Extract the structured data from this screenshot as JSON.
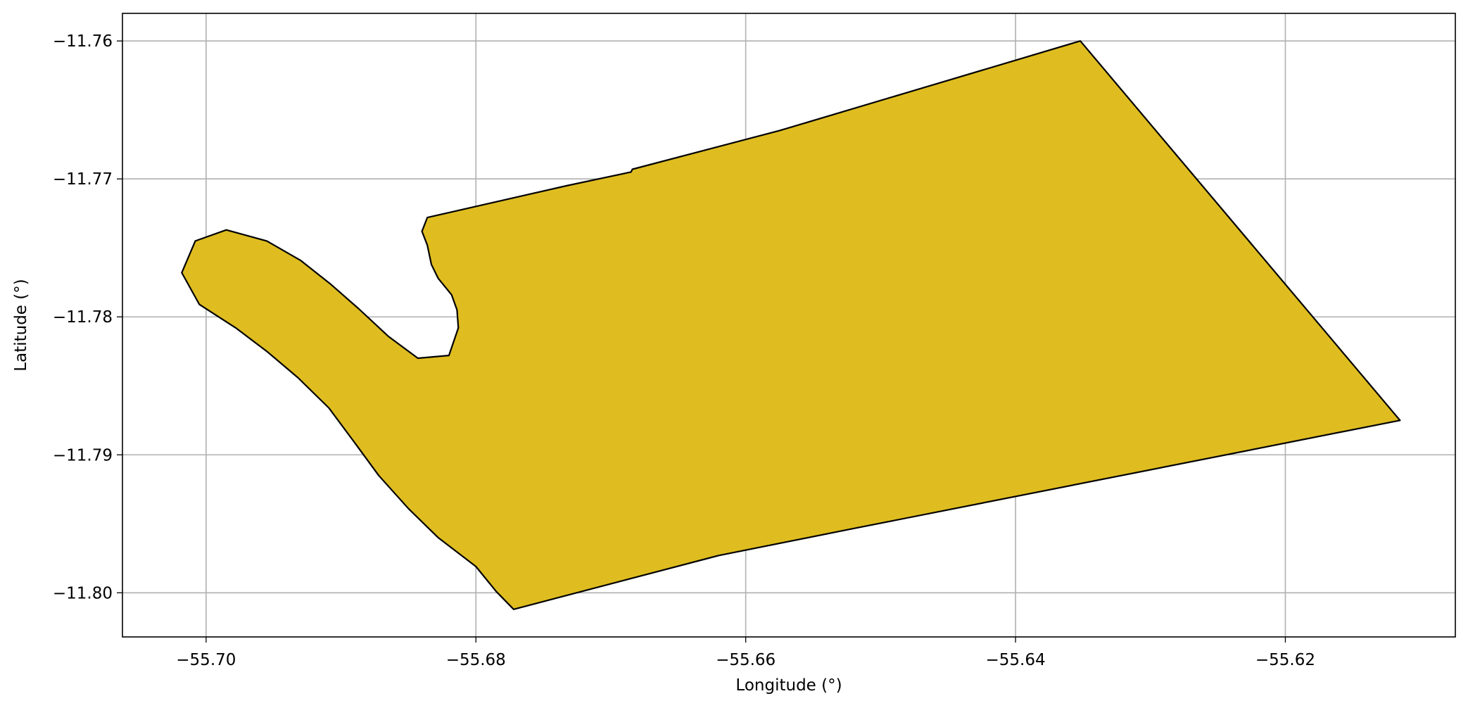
{
  "chart_data": {
    "type": "polygon-map",
    "title": "",
    "xlabel": "Longitude (°)",
    "ylabel": "Latitude (°)",
    "xlim": [
      -55.7062,
      -55.6074
    ],
    "ylim": [
      -11.8032,
      -11.758
    ],
    "grid": true,
    "x_ticks": [
      {
        "value": -55.7,
        "label": "−55.70"
      },
      {
        "value": -55.68,
        "label": "−55.68"
      },
      {
        "value": -55.66,
        "label": "−55.66"
      },
      {
        "value": -55.64,
        "label": "−55.64"
      },
      {
        "value": -55.62,
        "label": "−55.62"
      }
    ],
    "y_ticks": [
      {
        "value": -11.76,
        "label": "−11.76"
      },
      {
        "value": -11.77,
        "label": "−11.77"
      },
      {
        "value": -11.78,
        "label": "−11.78"
      },
      {
        "value": -11.79,
        "label": "−11.79"
      },
      {
        "value": -11.8,
        "label": "−11.80"
      }
    ],
    "polygon": {
      "fill": "#dfbd20",
      "stroke": "#000000",
      "coordinates": [
        [
          -55.6352,
          -11.76
        ],
        [
          -55.6115,
          -11.7875
        ],
        [
          -55.6523,
          -11.7954
        ],
        [
          -55.662,
          -11.7973
        ],
        [
          -55.6772,
          -11.8012
        ],
        [
          -55.6785,
          -11.7999
        ],
        [
          -55.68,
          -11.7981
        ],
        [
          -55.6828,
          -11.796
        ],
        [
          -55.685,
          -11.7939
        ],
        [
          -55.6872,
          -11.7915
        ],
        [
          -55.689,
          -11.7891
        ],
        [
          -55.6909,
          -11.7866
        ],
        [
          -55.6932,
          -11.7844
        ],
        [
          -55.6955,
          -11.7825
        ],
        [
          -55.6978,
          -11.7808
        ],
        [
          -55.7005,
          -11.7791
        ],
        [
          -55.7018,
          -11.7768
        ],
        [
          -55.7008,
          -11.7745
        ],
        [
          -55.6985,
          -11.7737
        ],
        [
          -55.6955,
          -11.7745
        ],
        [
          -55.693,
          -11.7759
        ],
        [
          -55.6908,
          -11.7776
        ],
        [
          -55.6887,
          -11.7794
        ],
        [
          -55.6865,
          -11.7814
        ],
        [
          -55.6843,
          -11.783
        ],
        [
          -55.682,
          -11.7828
        ],
        [
          -55.6813,
          -11.7808
        ],
        [
          -55.6814,
          -11.7795
        ],
        [
          -55.6818,
          -11.7784
        ],
        [
          -55.6828,
          -11.7772
        ],
        [
          -55.6833,
          -11.7762
        ],
        [
          -55.6836,
          -11.7748
        ],
        [
          -55.684,
          -11.7738
        ],
        [
          -55.6836,
          -11.7728
        ],
        [
          -55.6733,
          -11.7705
        ],
        [
          -55.6685,
          -11.7695
        ],
        [
          -55.6684,
          -11.7693
        ],
        [
          -55.6575,
          -11.7665
        ]
      ]
    }
  }
}
